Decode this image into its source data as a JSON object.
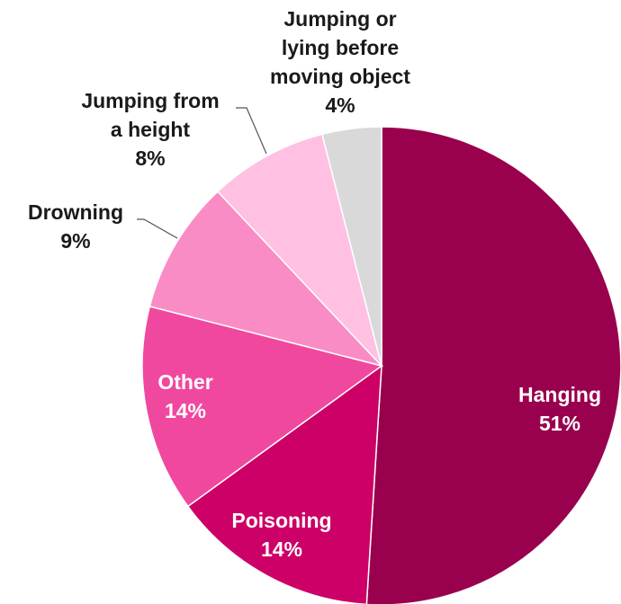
{
  "chart_data": {
    "type": "pie",
    "title": "",
    "start_angle_deg": 0,
    "direction": "clockwise",
    "slices": [
      {
        "label": "Hanging",
        "value": 51,
        "value_label": "51%",
        "color": "#99004d",
        "label_color": "#ffffff"
      },
      {
        "label": "Poisoning",
        "value": 14,
        "value_label": "14%",
        "color": "#cc0066",
        "label_color": "#ffffff"
      },
      {
        "label": "Other",
        "value": 14,
        "value_label": "14%",
        "color": "#f0489f",
        "label_color": "#ffffff"
      },
      {
        "label": "Drowning",
        "value": 9,
        "value_label": "9%",
        "color": "#f98cc5",
        "label_color": "#1a1a1a"
      },
      {
        "label": "Jumping from a height",
        "value": 8,
        "value_label": "8%",
        "color": "#ffc0e2",
        "label_color": "#1a1a1a"
      },
      {
        "label": "Jumping or lying before moving object",
        "value": 4,
        "value_label": "4%",
        "color": "#d9d9d9",
        "label_color": "#1a1a1a"
      }
    ]
  }
}
